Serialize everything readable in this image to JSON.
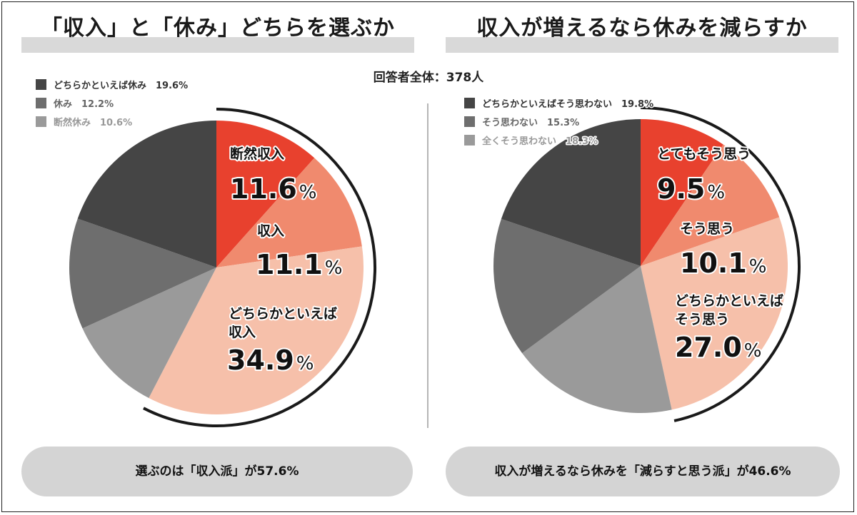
{
  "chart_data": [
    {
      "type": "pie",
      "title": "「収入」と「休み」どちらを選ぶか",
      "start_angle_deg": 0,
      "direction": "clockwise",
      "slices": [
        {
          "label": "断然収入",
          "value": 11.6,
          "label_display": "断然収入",
          "pct_display": "11.6",
          "color": "#e8412e",
          "label_color": "#111111"
        },
        {
          "label": "収入",
          "value": 11.1,
          "label_display": "収入",
          "pct_display": "11.1",
          "color": "#f08a6e",
          "label_color": "#111111"
        },
        {
          "label": "どちらかといえば収入",
          "value": 34.9,
          "label_display": "どちらかといえば\n収入",
          "pct_display": "34.9",
          "color": "#f6c0aa",
          "label_color": "#111111"
        },
        {
          "label": "断然休み",
          "value": 10.6,
          "color": "#9a9a9a"
        },
        {
          "label": "休み",
          "value": 12.2,
          "color": "#6e6e6e"
        },
        {
          "label": "どちらかといえば休み",
          "value": 19.6,
          "color": "#454545"
        }
      ],
      "legend": [
        {
          "text": "どちらかといえば休み　19.6%",
          "color": "#454545",
          "text_color": "#333333"
        },
        {
          "text": "休み　12.2%",
          "color": "#6e6e6e",
          "text_color": "#666666"
        },
        {
          "text": "断然休み　10.6%",
          "color": "#9a9a9a",
          "text_color": "#999999"
        }
      ],
      "legend_position": "top-left",
      "summary": "選ぶのは「収入派」が57.6%"
    },
    {
      "type": "pie",
      "title": "収入が増えるなら休みを減らすか",
      "start_angle_deg": 0,
      "direction": "clockwise",
      "slices": [
        {
          "label": "とてもそう思う",
          "value": 9.5,
          "label_display": "とてもそう思う",
          "pct_display": "9.5",
          "color": "#e8412e",
          "label_color": "#111111"
        },
        {
          "label": "そう思う",
          "value": 10.1,
          "label_display": "そう思う",
          "pct_display": "10.1",
          "color": "#f08a6e",
          "label_color": "#111111"
        },
        {
          "label": "どちらかといえばそう思う",
          "value": 27.0,
          "label_display": "どちらかといえば\nそう思う",
          "pct_display": "27.0",
          "color": "#f6c0aa",
          "label_color": "#111111"
        },
        {
          "label": "全くそう思わない",
          "value": 18.3,
          "color": "#9a9a9a"
        },
        {
          "label": "そう思わない",
          "value": 15.3,
          "color": "#6e6e6e"
        },
        {
          "label": "どちらかといえばそう思わない",
          "value": 19.8,
          "color": "#454545"
        }
      ],
      "legend": [
        {
          "text": "どちらかといえばそう思わない　19.8%",
          "color": "#454545",
          "text_color": "#333333"
        },
        {
          "text": "そう思わない　15.3%",
          "color": "#6e6e6e",
          "text_color": "#666666"
        },
        {
          "text": "全くそう思わない　18.3%",
          "color": "#9a9a9a",
          "text_color": "#999999"
        }
      ],
      "legend_position": "top-left",
      "summary": "収入が増えるなら休みを「減らすと思う派」が46.6%"
    }
  ],
  "respondents": "回答者全体：378人",
  "pct_unit": "%",
  "colors": {
    "accent": "#e8412e",
    "title_bar": "#d9d9d9",
    "summary_bg": "#d4d4d4",
    "divider": "#b5b5b5"
  }
}
